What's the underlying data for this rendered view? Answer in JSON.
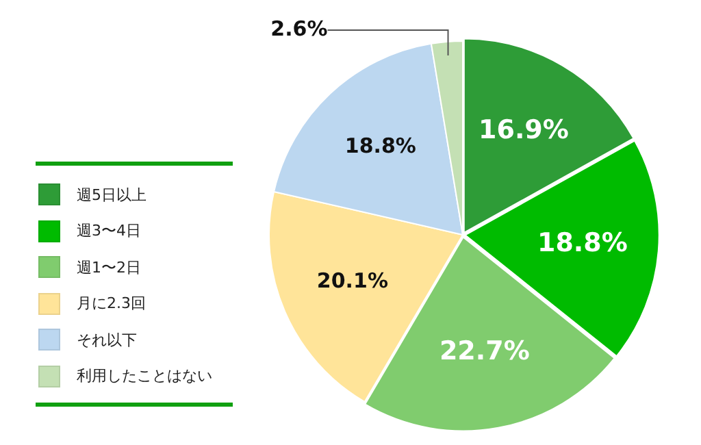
{
  "chart_data": {
    "type": "pie",
    "categories": [
      "週5日以上",
      "週3〜4日",
      "週1〜2日",
      "月に2.3回",
      "それ以下",
      "利用したことはない"
    ],
    "values": [
      16.9,
      18.8,
      22.7,
      20.1,
      18.8,
      2.6
    ],
    "colors": [
      "#2e9c37",
      "#00bb00",
      "#80cc6e",
      "#ffe499",
      "#bcd7f0",
      "#c4e0b4"
    ],
    "value_labels": [
      "16.9%",
      "18.8%",
      "22.7%",
      "20.1%",
      "18.8%",
      "2.6%"
    ],
    "legend": "left"
  }
}
